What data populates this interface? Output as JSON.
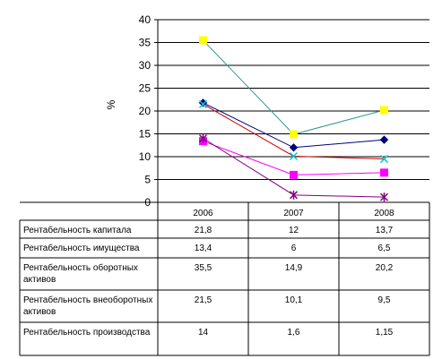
{
  "chart_data": {
    "type": "line",
    "title": "",
    "xlabel": "",
    "ylabel": "%",
    "ylim": [
      0,
      40
    ],
    "yticks": [
      0,
      5,
      10,
      15,
      20,
      25,
      30,
      35,
      40
    ],
    "categories": [
      "2006",
      "2007",
      "2008"
    ],
    "grid": "horizontal",
    "legend": "data-table",
    "series": [
      {
        "name": "Рентабельность капитала",
        "values": [
          21.8,
          12,
          13.7
        ],
        "values_text": [
          "21,8",
          "12",
          "13,7"
        ],
        "color": "#000080",
        "marker": "diamond"
      },
      {
        "name": "Рентабельность имущества",
        "values": [
          13.4,
          6,
          6.5
        ],
        "values_text": [
          "13,4",
          "6",
          "6,5"
        ],
        "color": "#ff00ff",
        "marker": "square"
      },
      {
        "name": "Рентабельность оборотных активов",
        "values": [
          35.5,
          14.9,
          20.2
        ],
        "values_text": [
          "35,5",
          "14,9",
          "20,2"
        ],
        "color": "#ffff00",
        "line_color": "#339988",
        "marker": "square"
      },
      {
        "name": "Рентабельность внеоборотных активов",
        "values": [
          21.5,
          10.1,
          9.5
        ],
        "values_text": [
          "21,5",
          "10,1",
          "9,5"
        ],
        "color": "#00cccc",
        "line_color": "#cc0000",
        "marker": "x"
      },
      {
        "name": "Рентабельность производства",
        "values": [
          14,
          1.6,
          1.15
        ],
        "values_text": [
          "14",
          "1,6",
          "1,15"
        ],
        "color": "#800080",
        "marker": "star"
      }
    ]
  }
}
